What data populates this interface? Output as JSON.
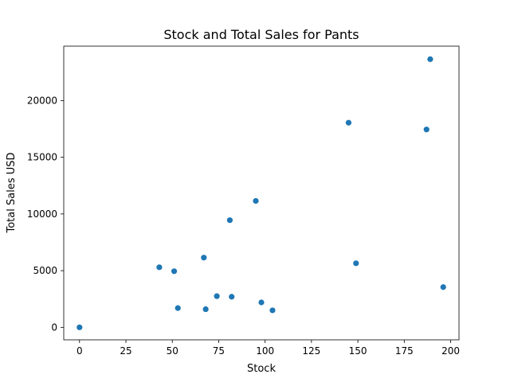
{
  "chart_data": {
    "type": "scatter",
    "title": "Stock and Total Sales for Pants",
    "xlabel": "Stock",
    "ylabel": "Total Sales USD",
    "xlim": [
      -8.5,
      204.5
    ],
    "ylim": [
      -1100,
      24800
    ],
    "xticks": [
      0,
      25,
      50,
      75,
      100,
      125,
      150,
      175,
      200
    ],
    "yticks": [
      0,
      5000,
      10000,
      15000,
      20000
    ],
    "grid": false,
    "point_color": "#1f77b4",
    "points": [
      {
        "x": 0,
        "y": 0
      },
      {
        "x": 43,
        "y": 5300
      },
      {
        "x": 51,
        "y": 4950
      },
      {
        "x": 53,
        "y": 1700
      },
      {
        "x": 67,
        "y": 6150
      },
      {
        "x": 68,
        "y": 1600
      },
      {
        "x": 74,
        "y": 2750
      },
      {
        "x": 81,
        "y": 9450
      },
      {
        "x": 82,
        "y": 2700
      },
      {
        "x": 95,
        "y": 11150
      },
      {
        "x": 98,
        "y": 2200
      },
      {
        "x": 104,
        "y": 1500
      },
      {
        "x": 145,
        "y": 18050
      },
      {
        "x": 149,
        "y": 5650
      },
      {
        "x": 187,
        "y": 17450
      },
      {
        "x": 189,
        "y": 23650
      },
      {
        "x": 196,
        "y": 3550
      }
    ]
  }
}
